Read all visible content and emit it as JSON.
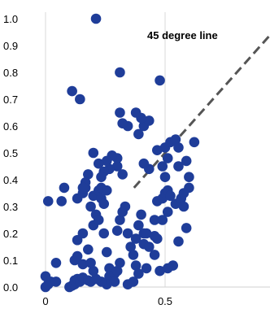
{
  "chart_data": {
    "type": "scatter",
    "title": "",
    "xlabel": "",
    "ylabel": "",
    "xlim": [
      0,
      1
    ],
    "ylim": [
      0,
      1
    ],
    "x_ticks": [
      {
        "value": 0,
        "label": "0"
      },
      {
        "value": 0.5,
        "label": "0.5"
      }
    ],
    "y_ticks": [
      {
        "value": 0,
        "label": "0.0"
      },
      {
        "value": 0.1,
        "label": "0.1"
      },
      {
        "value": 0.2,
        "label": "0.2"
      },
      {
        "value": 0.3,
        "label": "0.3"
      },
      {
        "value": 0.4,
        "label": "0.4"
      },
      {
        "value": 0.5,
        "label": "0.5"
      },
      {
        "value": 0.6,
        "label": "0.6"
      },
      {
        "value": 0.7,
        "label": "0.7"
      },
      {
        "value": 0.8,
        "label": "0.8"
      },
      {
        "value": 0.9,
        "label": "0.9"
      },
      {
        "value": 1.0,
        "label": "1.0"
      }
    ],
    "grid": {
      "x": true,
      "y": false
    },
    "point_color": "#1f3d99",
    "reference_line": {
      "label": "45 degree line",
      "slope": 1,
      "intercept": 0,
      "color": "#555555",
      "style": "dashed"
    },
    "points": [
      [
        0.0,
        0.0
      ],
      [
        0.011,
        0.01
      ],
      [
        0.022,
        0.02
      ],
      [
        0.0,
        0.04
      ],
      [
        0.044,
        0.02
      ],
      [
        0.044,
        0.09
      ],
      [
        0.011,
        0.32
      ],
      [
        0.067,
        0.32
      ],
      [
        0.078,
        0.37
      ],
      [
        0.1,
        0.0
      ],
      [
        0.111,
        0.005
      ],
      [
        0.122,
        0.01
      ],
      [
        0.122,
        0.025
      ],
      [
        0.133,
        0.03
      ],
      [
        0.144,
        0.02
      ],
      [
        0.156,
        0.035
      ],
      [
        0.122,
        0.1
      ],
      [
        0.133,
        0.115
      ],
      [
        0.156,
        0.085
      ],
      [
        0.133,
        0.175
      ],
      [
        0.156,
        0.2
      ],
      [
        0.133,
        0.33
      ],
      [
        0.156,
        0.35
      ],
      [
        0.167,
        0.37
      ],
      [
        0.178,
        0.14
      ],
      [
        0.178,
        0.025
      ],
      [
        0.189,
        0.02
      ],
      [
        0.189,
        0.3
      ],
      [
        0.2,
        0.34
      ],
      [
        0.2,
        0.23
      ],
      [
        0.211,
        0.27
      ],
      [
        0.222,
        0.25
      ],
      [
        0.222,
        0.36
      ],
      [
        0.233,
        0.37
      ],
      [
        0.233,
        0.33
      ],
      [
        0.244,
        0.31
      ],
      [
        0.256,
        0.36
      ],
      [
        0.244,
        0.2
      ],
      [
        0.256,
        0.13
      ],
      [
        0.267,
        0.07
      ],
      [
        0.267,
        0.04
      ],
      [
        0.289,
        0.05
      ],
      [
        0.3,
        0.06
      ],
      [
        0.311,
        0.09
      ],
      [
        0.3,
        0.21
      ],
      [
        0.311,
        0.25
      ],
      [
        0.322,
        0.28
      ],
      [
        0.3,
        0.45
      ],
      [
        0.322,
        0.42
      ],
      [
        0.333,
        0.3
      ],
      [
        0.344,
        0.2
      ],
      [
        0.356,
        0.15
      ],
      [
        0.367,
        0.12
      ],
      [
        0.378,
        0.08
      ],
      [
        0.389,
        0.05
      ],
      [
        0.367,
        0.02
      ],
      [
        0.344,
        0.01
      ],
      [
        0.378,
        0.18
      ],
      [
        0.389,
        0.23
      ],
      [
        0.411,
        0.2
      ],
      [
        0.422,
        0.2
      ],
      [
        0.4,
        0.27
      ],
      [
        0.411,
        0.16
      ],
      [
        0.433,
        0.15
      ],
      [
        0.456,
        0.19
      ],
      [
        0.467,
        0.18
      ],
      [
        0.456,
        0.25
      ],
      [
        0.467,
        0.32
      ],
      [
        0.489,
        0.33
      ],
      [
        0.5,
        0.35
      ],
      [
        0.511,
        0.36
      ],
      [
        0.522,
        0.34
      ],
      [
        0.544,
        0.31
      ],
      [
        0.567,
        0.33
      ],
      [
        0.578,
        0.3
      ],
      [
        0.589,
        0.22
      ],
      [
        0.6,
        0.37
      ],
      [
        0.556,
        0.17
      ],
      [
        0.533,
        0.08
      ],
      [
        0.511,
        0.07
      ],
      [
        0.478,
        0.06
      ],
      [
        0.5,
        0.41
      ],
      [
        0.489,
        0.45
      ],
      [
        0.511,
        0.48
      ],
      [
        0.5,
        0.52
      ],
      [
        0.522,
        0.54
      ],
      [
        0.544,
        0.55
      ],
      [
        0.556,
        0.52
      ],
      [
        0.467,
        0.51
      ],
      [
        0.433,
        0.44
      ],
      [
        0.411,
        0.46
      ],
      [
        0.389,
        0.57
      ],
      [
        0.411,
        0.6
      ],
      [
        0.433,
        0.62
      ],
      [
        0.4,
        0.63
      ],
      [
        0.378,
        0.65
      ],
      [
        0.344,
        0.6
      ],
      [
        0.322,
        0.61
      ],
      [
        0.311,
        0.65
      ],
      [
        0.3,
        0.48
      ],
      [
        0.278,
        0.49
      ],
      [
        0.267,
        0.44
      ],
      [
        0.256,
        0.47
      ],
      [
        0.244,
        0.43
      ],
      [
        0.233,
        0.41
      ],
      [
        0.222,
        0.46
      ],
      [
        0.2,
        0.5
      ],
      [
        0.178,
        0.42
      ],
      [
        0.167,
        0.39
      ],
      [
        0.156,
        0.37
      ],
      [
        0.111,
        0.73
      ],
      [
        0.144,
        0.7
      ],
      [
        0.211,
        1.0
      ],
      [
        0.311,
        0.8
      ],
      [
        0.478,
        0.77
      ],
      [
        0.556,
        0.45
      ],
      [
        0.589,
        0.47
      ],
      [
        0.622,
        0.54
      ],
      [
        0.6,
        0.41
      ],
      [
        0.578,
        0.35
      ],
      [
        0.511,
        0.28
      ],
      [
        0.489,
        0.25
      ],
      [
        0.456,
        0.12
      ],
      [
        0.422,
        0.07
      ],
      [
        0.289,
        0.02
      ],
      [
        0.256,
        0.01
      ],
      [
        0.233,
        0.02
      ],
      [
        0.211,
        0.03
      ],
      [
        0.2,
        0.06
      ],
      [
        0.189,
        0.09
      ]
    ]
  }
}
